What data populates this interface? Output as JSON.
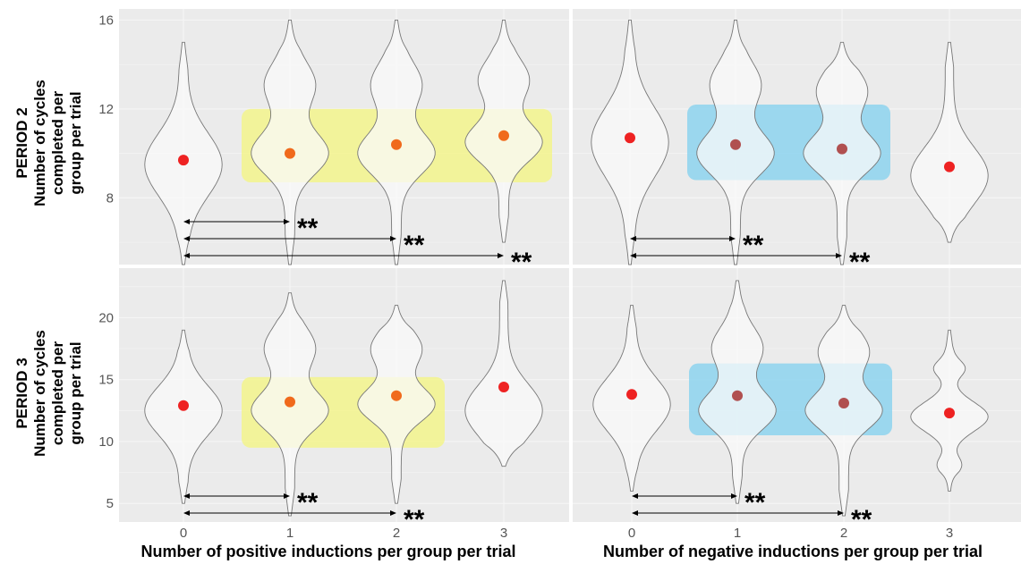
{
  "figure": {
    "row_titles": [
      {
        "bold": "PERIOD 2",
        "lines": [
          "Number of cycles",
          "completed per",
          "group per trial"
        ]
      },
      {
        "bold": "PERIOD 3",
        "lines": [
          "Number of cycles",
          "completed per",
          "group per trial"
        ]
      }
    ],
    "x_labels": [
      "Number of positive inductions per group per trial",
      "Number of negative inductions per group per trial"
    ]
  },
  "colors": {
    "panel_bg": "#ebebeb",
    "grid": "#f5f5f5",
    "violin_fill": "#fafafa",
    "violin_stroke": "#777777",
    "highlight_positive": "#f3f58c",
    "highlight_negative": "#8dd3ef",
    "mean_red": "#ee2222",
    "mean_orange": "#f06a1c",
    "mean_brown": "#b05050"
  },
  "chart_data": [
    {
      "type": "violin",
      "panel": "period2-positive",
      "categories": [
        "0",
        "1",
        "2",
        "3"
      ],
      "ylim": [
        5,
        16.5
      ],
      "yticks": [
        8,
        12,
        16
      ],
      "means": [
        9.7,
        10.0,
        10.4,
        10.8
      ],
      "violins": [
        {
          "range": [
            5,
            15
          ],
          "peak": 9.5,
          "shape": "single"
        },
        {
          "range": [
            5,
            16
          ],
          "peak": 10.0,
          "shape": "double"
        },
        {
          "range": [
            5,
            16
          ],
          "peak": 10.0,
          "shape": "double"
        },
        {
          "range": [
            6,
            16
          ],
          "peak": 10.5,
          "shape": "double"
        }
      ],
      "highlight": {
        "from": "1",
        "to": "3",
        "ylim": [
          8.7,
          12
        ]
      },
      "comparisons": [
        {
          "from": "0",
          "to": "1",
          "label": "**"
        },
        {
          "from": "0",
          "to": "2",
          "label": "**"
        },
        {
          "from": "0",
          "to": "3",
          "label": "**"
        }
      ]
    },
    {
      "type": "violin",
      "panel": "period2-negative",
      "categories": [
        "0",
        "1",
        "2",
        "3"
      ],
      "ylim": [
        5,
        16.5
      ],
      "yticks": [
        8,
        12,
        16
      ],
      "means": [
        10.7,
        10.4,
        10.2,
        9.4
      ],
      "violins": [
        {
          "range": [
            5,
            16
          ],
          "peak": 10.5,
          "shape": "single"
        },
        {
          "range": [
            5,
            16
          ],
          "peak": 10.0,
          "shape": "double"
        },
        {
          "range": [
            5,
            15
          ],
          "peak": 10.0,
          "shape": "double"
        },
        {
          "range": [
            6,
            15
          ],
          "peak": 9.0,
          "shape": "single"
        }
      ],
      "highlight": {
        "from": "1",
        "to": "2",
        "ylim": [
          8.8,
          12.2
        ]
      },
      "comparisons": [
        {
          "from": "0",
          "to": "1",
          "label": "**"
        },
        {
          "from": "0",
          "to": "2",
          "label": "**"
        }
      ]
    },
    {
      "type": "violin",
      "panel": "period3-positive",
      "categories": [
        "0",
        "1",
        "2",
        "3"
      ],
      "ylim": [
        3.5,
        24
      ],
      "yticks": [
        5,
        10,
        15,
        20
      ],
      "means": [
        12.9,
        13.2,
        13.7,
        14.4
      ],
      "violins": [
        {
          "range": [
            5,
            19
          ],
          "peak": 12.5,
          "shape": "single"
        },
        {
          "range": [
            4,
            22
          ],
          "peak": 12.5,
          "shape": "double"
        },
        {
          "range": [
            5,
            21
          ],
          "peak": 13.0,
          "shape": "double"
        },
        {
          "range": [
            8,
            23
          ],
          "peak": 12.5,
          "shape": "single"
        }
      ],
      "highlight": {
        "from": "1",
        "to": "2",
        "ylim": [
          9.5,
          15.2
        ]
      },
      "comparisons": [
        {
          "from": "0",
          "to": "1",
          "label": "**"
        },
        {
          "from": "0",
          "to": "2",
          "label": "**"
        }
      ]
    },
    {
      "type": "violin",
      "panel": "period3-negative",
      "categories": [
        "0",
        "1",
        "2",
        "3"
      ],
      "ylim": [
        3.5,
        24
      ],
      "yticks": [
        5,
        10,
        15,
        20
      ],
      "means": [
        13.8,
        13.7,
        13.1,
        12.3
      ],
      "violins": [
        {
          "range": [
            6,
            21
          ],
          "peak": 13.0,
          "shape": "single"
        },
        {
          "range": [
            5,
            23
          ],
          "peak": 12.5,
          "shape": "double"
        },
        {
          "range": [
            4,
            21
          ],
          "peak": 12.5,
          "shape": "double"
        },
        {
          "range": [
            6,
            19
          ],
          "peak": 12.0,
          "shape": "wavy"
        }
      ],
      "highlight": {
        "from": "1",
        "to": "2",
        "ylim": [
          10.5,
          16.3
        ]
      },
      "comparisons": [
        {
          "from": "0",
          "to": "1",
          "label": "**"
        },
        {
          "from": "0",
          "to": "2",
          "label": "**"
        }
      ]
    }
  ]
}
